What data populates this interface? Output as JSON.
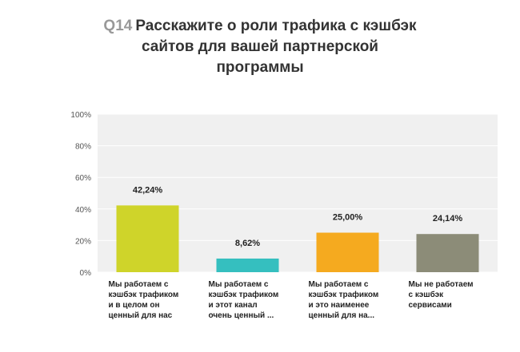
{
  "question": {
    "number": "Q14",
    "text_lines": [
      "Расскажите о роли трафика с кэшбэк",
      "сайтов для вашей партнерской",
      "программы"
    ]
  },
  "chart_data": {
    "type": "bar",
    "title": "Q14 Расскажите о роли трафика с кэшбэк сайтов для вашей партнерской программы",
    "ylim": [
      0,
      100
    ],
    "y_ticks": [
      "100%",
      "80%",
      "60%",
      "40%",
      "20%",
      "0%"
    ],
    "y_tick_values": [
      100,
      80,
      60,
      40,
      20,
      0
    ],
    "grid": true,
    "categories": [
      [
        "Мы работаем с",
        "кэшбэк трафиком",
        "и в целом он",
        "ценный для нас"
      ],
      [
        "Мы работаем с",
        "кэшбэк трафиком",
        "и этот канал",
        "очень ценный ..."
      ],
      [
        "Мы работаем с",
        "кэшбэк трафиком",
        "и это наименее",
        "ценный для на..."
      ],
      [
        "Мы не работаем",
        "с кэшбэк",
        "сервисами"
      ]
    ],
    "values": [
      42.24,
      8.62,
      25.0,
      24.14
    ],
    "value_labels": [
      "42,24%",
      "8,62%",
      "25,00%",
      "24,14%"
    ],
    "colors": [
      "#cfd42a",
      "#35bfbf",
      "#f5aa1f",
      "#8c8c78"
    ],
    "plot_background": "#f0f0f0",
    "gridline_color": "#ffffff"
  }
}
